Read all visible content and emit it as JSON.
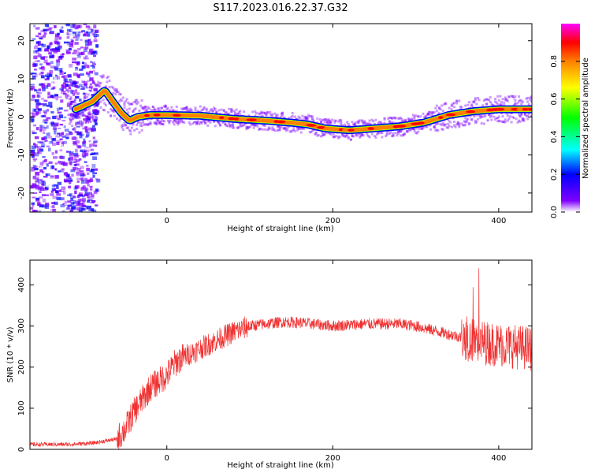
{
  "title": "S117.2023.016.22.37.G32",
  "chart_data": [
    {
      "type": "heatmap",
      "xlabel": "Height of straight line (km)",
      "ylabel": "Frequency (Hz)",
      "xlim": [
        -165,
        440
      ],
      "ylim": [
        -25,
        24.5
      ],
      "xticks": [
        "0",
        "200",
        "400"
      ],
      "yticks": [
        "-20",
        "-10",
        "0",
        "10",
        "20"
      ],
      "colorbar": {
        "label": "Normalized spectral amplitude",
        "range": [
          0,
          1
        ],
        "ticks": [
          "0.0",
          "0.2",
          "0.4",
          "0.6",
          "0.8"
        ],
        "colors": [
          "#ffffff",
          "#7f00ff",
          "#0000ff",
          "#00ffff",
          "#00ff00",
          "#ffff00",
          "#ff8000",
          "#ff0000",
          "#ff00ff"
        ]
      },
      "ridge": {
        "x": [
          -110,
          -90,
          -75,
          -65,
          -55,
          -45,
          -35,
          -20,
          0,
          40,
          80,
          120,
          150,
          170,
          190,
          220,
          250,
          280,
          310,
          340,
          370,
          400,
          440
        ],
        "y": [
          2,
          4,
          7,
          4,
          1,
          -1,
          0,
          0.5,
          0.5,
          0.3,
          -0.5,
          -1,
          -1.5,
          -2,
          -3,
          -3.5,
          -3,
          -2.5,
          -1.5,
          0.5,
          1.5,
          2,
          2
        ]
      },
      "grid": false
    },
    {
      "type": "line",
      "xlabel": "Height of straight line (km)",
      "ylabel": "SNR (10 * v/v)",
      "xlim": [
        -165,
        440
      ],
      "ylim": [
        0,
        460
      ],
      "xticks": [
        "0",
        "200",
        "400"
      ],
      "yticks": [
        "0",
        "100",
        "200",
        "300",
        "400"
      ],
      "color": "#f03030",
      "trend": {
        "x": [
          -165,
          -120,
          -90,
          -60,
          -50,
          -40,
          -30,
          -20,
          -10,
          0,
          10,
          20,
          40,
          60,
          80,
          100,
          120,
          140,
          160,
          200,
          240,
          280,
          300,
          320,
          340,
          360,
          380,
          400,
          420,
          440
        ],
        "y": [
          12,
          12,
          15,
          25,
          50,
          90,
          120,
          150,
          165,
          180,
          210,
          225,
          245,
          265,
          285,
          300,
          305,
          310,
          308,
          300,
          305,
          305,
          300,
          290,
          280,
          270,
          260,
          255,
          250,
          245
        ]
      },
      "grid": false
    }
  ]
}
